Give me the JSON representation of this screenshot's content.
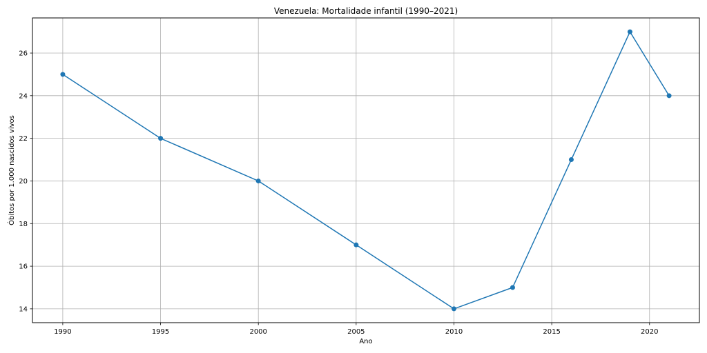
{
  "chart_data": {
    "type": "line",
    "title": "Venezuela: Mortalidade infantil (1990–2021)",
    "xlabel": "Ano",
    "ylabel": "Óbitos por 1.000 nascidos vivos",
    "x": [
      1990,
      1995,
      2000,
      2005,
      2010,
      2013,
      2016,
      2019,
      2021
    ],
    "series": [
      {
        "values": [
          25,
          22,
          20,
          17,
          14,
          15,
          21,
          27,
          24
        ]
      }
    ],
    "xlim": [
      1988.45,
      2022.55
    ],
    "ylim": [
      13.35,
      27.65
    ],
    "xticks": [
      1990,
      1995,
      2000,
      2005,
      2010,
      2015,
      2020
    ],
    "yticks": [
      14,
      16,
      18,
      20,
      22,
      24,
      26
    ],
    "grid": true,
    "marker": "circle",
    "colors": {
      "line": "#1f77b4",
      "grid": "#b0b0b0",
      "axes": "#000000"
    }
  }
}
